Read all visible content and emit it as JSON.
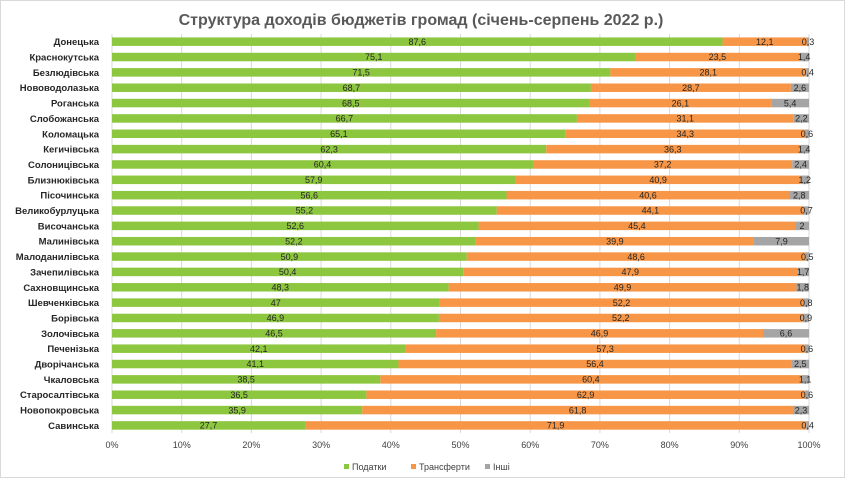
{
  "chart_data": {
    "type": "bar",
    "orientation": "horizontal",
    "stacked": "percent",
    "title": "Структура доходів бюджетів громад (січень-серпень 2022 р.)",
    "xlabel": "",
    "ylabel": "",
    "xlim": [
      0,
      100
    ],
    "x_ticks": [
      "0%",
      "10%",
      "20%",
      "30%",
      "40%",
      "50%",
      "60%",
      "70%",
      "80%",
      "90%",
      "100%"
    ],
    "grid": "vertical",
    "legend_position": "bottom",
    "categories": [
      "Донецька",
      "Краснокутська",
      "Безлюдівська",
      "Нововодолазька",
      "Роганська",
      "Слобожанська",
      "Коломацька",
      "Кегичівська",
      "Солоницівська",
      "Близнюківська",
      "Пісочинська",
      "Великобурлуцька",
      "Височанська",
      "Малинівська",
      "Малоданилівська",
      "Зачепилівська",
      "Сахновщинська",
      "Шевченківська",
      "Борівська",
      "Золочівська",
      "Печенізька",
      "Дворічанська",
      "Чкаловська",
      "Старосалтівська",
      "Новопокровська",
      "Савинська"
    ],
    "series": [
      {
        "name": "Податки",
        "color": "#8dc63f",
        "values": [
          87.6,
          75.1,
          71.5,
          68.7,
          68.5,
          66.7,
          65.1,
          62.3,
          60.4,
          57.9,
          56.6,
          55.2,
          52.6,
          52.2,
          50.9,
          50.4,
          48.3,
          47,
          46.9,
          46.5,
          42.1,
          41.1,
          38.5,
          36.5,
          35.9,
          27.7
        ],
        "labels": [
          "87,6",
          "75,1",
          "71,5",
          "68,7",
          "68,5",
          "66,7",
          "65,1",
          "62,3",
          "60,4",
          "57,9",
          "56,6",
          "55,2",
          "52,6",
          "52,2",
          "50,9",
          "50,4",
          "48,3",
          "47",
          "46,9",
          "46,5",
          "42,1",
          "41,1",
          "38,5",
          "36,5",
          "35,9",
          "27,7"
        ]
      },
      {
        "name": "Трансферти",
        "color": "#f79646",
        "values": [
          12.1,
          23.5,
          28.1,
          28.7,
          26.1,
          31.1,
          34.3,
          36.3,
          37.2,
          40.9,
          40.6,
          44.1,
          45.4,
          39.9,
          48.6,
          47.9,
          49.9,
          52.2,
          52.2,
          46.9,
          57.3,
          56.4,
          60.4,
          62.9,
          61.8,
          71.9
        ],
        "labels": [
          "12,1",
          "23,5",
          "28,1",
          "28,7",
          "26,1",
          "31,1",
          "34,3",
          "36,3",
          "37,2",
          "40,9",
          "40,6",
          "44,1",
          "45,4",
          "39,9",
          "48,6",
          "47,9",
          "49,9",
          "52,2",
          "52,2",
          "46,9",
          "57,3",
          "56,4",
          "60,4",
          "62,9",
          "61,8",
          "71,9"
        ]
      },
      {
        "name": "Інші",
        "color": "#a5a5a5",
        "values": [
          0.3,
          1.4,
          0.4,
          2.6,
          5.4,
          2.2,
          0.6,
          1.4,
          2.4,
          1.2,
          2.8,
          0.7,
          2,
          7.9,
          0.5,
          1.7,
          1.8,
          0.8,
          0.9,
          6.6,
          0.6,
          2.5,
          1.1,
          0.6,
          2.3,
          0.4
        ],
        "labels": [
          "0,3",
          "1,4",
          "0,4",
          "2,6",
          "5,4",
          "2,2",
          "0,6",
          "1,4",
          "2,4",
          "1,2",
          "2,8",
          "0,7",
          "2",
          "7,9",
          "0,5",
          "1,7",
          "1,8",
          "0,8",
          "0,9",
          "6,6",
          "0,6",
          "2,5",
          "1,1",
          "0,6",
          "2,3",
          "0,4"
        ]
      }
    ]
  }
}
